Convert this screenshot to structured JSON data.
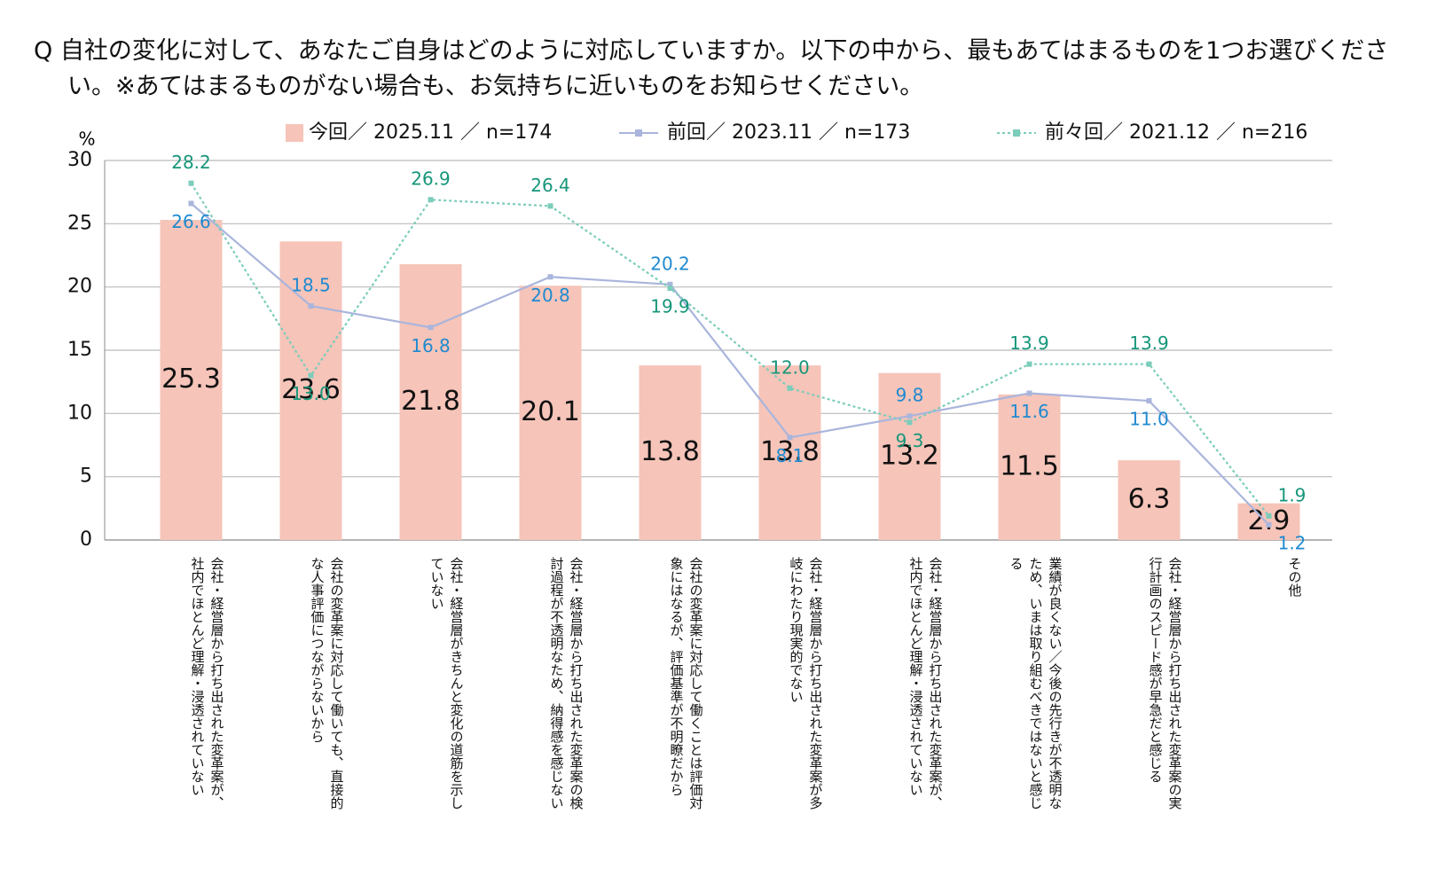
{
  "chart_data": {
    "type": "bar_line",
    "title": "Q 自社の変化に対して、あなたご自身はどのように対応していますか。以下の中から、最もあてはまるものを1つお選びください。※あてはまるものがない場合も、お気持ちに近いものをお知らせください。",
    "y_unit": "%",
    "categories": [
      "会社・経営層から打ち出された変革案が、社内でほとんど理解・浸透されていない",
      "会社の変革案に対応して働いても、直接的な人事評価につながらないから",
      "会社・経営層がきちんと変化の道筋を示していない",
      "会社・経営層から打ち出された変革案の検討過程が不透明なため、納得感を感じない",
      "会社の変革案に対応して働くことは評価対象にはなるが、評価基準が不明瞭だから",
      "会社・経営層から打ち出された変革案が多岐にわたり現実的でない",
      "会社・経営層から打ち出された変革案が、社内でほとんど理解・浸透されていない",
      "業績が良くない／今後の先行きが不透明なため、いまは取り組むべきではないと感じる",
      "会社・経営層から打ち出された変革案の実行計画のスピード感が早急だと感じる",
      "その他"
    ],
    "series": [
      {
        "name": "今回／ 2025.11 ／ n=174",
        "type": "bar",
        "color": "#f6c4b9",
        "label_color": "#111111",
        "values": [
          25.3,
          23.6,
          21.8,
          20.1,
          13.8,
          13.8,
          13.2,
          11.5,
          6.3,
          2.9
        ]
      },
      {
        "name": "前回／ 2023.11 ／ n=173",
        "type": "line",
        "color": "#a9b5dc",
        "label_color": "#1f8ad0",
        "dashed": false,
        "values": [
          26.6,
          18.5,
          16.8,
          20.8,
          20.2,
          8.1,
          9.8,
          11.6,
          11.0,
          1.2
        ],
        "value_labels": [
          "26.6",
          "18.5",
          "16.8",
          "20.8",
          "20.2",
          "8.1",
          "9.8",
          "11.6",
          "11.0",
          "1.2"
        ]
      },
      {
        "name": "前々回／ 2021.12 ／ n=216",
        "type": "line",
        "color": "#7ccdbb",
        "label_color": "#16967a",
        "dashed": true,
        "values": [
          28.2,
          13.0,
          26.9,
          26.4,
          19.9,
          12.0,
          9.3,
          13.9,
          13.9,
          1.9
        ],
        "value_labels": [
          "28.2",
          "13.0",
          "26.9",
          "26.4",
          "19.9",
          "12.0",
          "9.3",
          "13.9",
          "13.9",
          "1.9"
        ]
      }
    ],
    "ylim": [
      0,
      30
    ],
    "yticks": [
      0,
      5,
      10,
      15,
      20,
      25,
      30
    ],
    "grid": true
  }
}
